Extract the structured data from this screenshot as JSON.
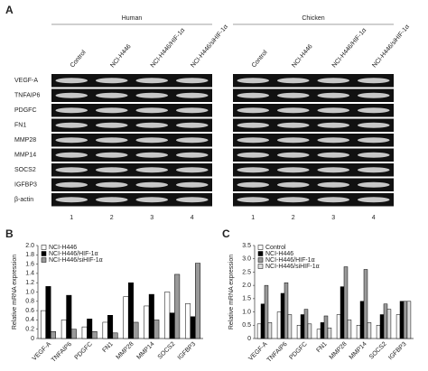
{
  "panel_a": {
    "label": "A",
    "groups": [
      {
        "name": "Human",
        "lanes": [
          "Control",
          "NCI-H446",
          "NCI-H446/HIF-1α",
          "NCI-H446/siHIF-1α"
        ]
      },
      {
        "name": "Chicken",
        "lanes": [
          "Control",
          "NCI-H446",
          "NCI-H446/HIF-1α",
          "NCI-H446/siHIF-1α"
        ]
      }
    ],
    "genes": [
      "VEGF-A",
      "TNFAIP6",
      "PDGFC",
      "FN1",
      "MMP28",
      "MMP14",
      "SOCS2",
      "IGFBP3",
      "β-actin"
    ],
    "lane_numbers": [
      "1",
      "2",
      "3",
      "4"
    ]
  },
  "chart_data": [
    {
      "type": "bar",
      "panel": "B",
      "y_label": "Relative mRNA expression",
      "categories": [
        "VEGF-A",
        "TNFAIP6",
        "PDGFC",
        "FN1",
        "MMP28",
        "MMP14",
        "SOCS2",
        "IGFBP3"
      ],
      "series": [
        {
          "name": "NCI-H446",
          "color": "#ffffff",
          "values": [
            0.6,
            0.4,
            0.25,
            0.35,
            0.9,
            0.7,
            1.0,
            0.75
          ]
        },
        {
          "name": "NCI-H446/HIF-1α",
          "color": "#000000",
          "values": [
            1.12,
            0.93,
            0.42,
            0.5,
            1.2,
            0.95,
            0.55,
            0.47
          ]
        },
        {
          "name": "NCI-H446/siHIF-1α",
          "color": "#999999",
          "values": [
            0.15,
            0.2,
            0.15,
            0.12,
            0.35,
            0.4,
            1.38,
            1.62
          ]
        }
      ],
      "ylim": [
        0,
        2
      ],
      "yticks": [
        0,
        0.2,
        0.4,
        0.6,
        0.8,
        {
          "value": 1,
          "label": "1.0"
        },
        1.2,
        1.4,
        1.6,
        1.8,
        {
          "value": 2,
          "label": "2.0"
        }
      ]
    },
    {
      "type": "bar",
      "panel": "C",
      "y_label": "Relative mRNA expression",
      "categories": [
        "VEGF-A",
        "TNFAIP6",
        "PDGFC",
        "FN1",
        "MMP28",
        "MMP14",
        "SOCS2",
        "IGFBP3"
      ],
      "series": [
        {
          "name": "Control",
          "color": "#ffffff",
          "values": [
            0.55,
            1.0,
            0.5,
            0.35,
            0.9,
            0.5,
            0.5,
            0.9
          ]
        },
        {
          "name": "NCI-H446",
          "color": "#000000",
          "values": [
            1.3,
            1.7,
            0.9,
            0.6,
            1.95,
            1.4,
            0.9,
            1.4
          ]
        },
        {
          "name": "NCI-H446/HIF-1α",
          "color": "#999999",
          "values": [
            2.0,
            2.1,
            1.1,
            0.85,
            2.7,
            2.6,
            1.3,
            1.4
          ]
        },
        {
          "name": "NCI-H446/siHIF-1α",
          "color": "#dddddd",
          "values": [
            0.6,
            0.9,
            0.55,
            0.4,
            0.7,
            0.6,
            1.1,
            1.4
          ]
        }
      ],
      "ylim": [
        0,
        3.5
      ],
      "yticks": [
        0,
        0.5,
        {
          "value": 1,
          "label": "1.0"
        },
        1.5,
        {
          "value": 2,
          "label": "2.0"
        },
        2.5,
        {
          "value": 3,
          "label": "3.0"
        },
        3.5
      ]
    }
  ]
}
